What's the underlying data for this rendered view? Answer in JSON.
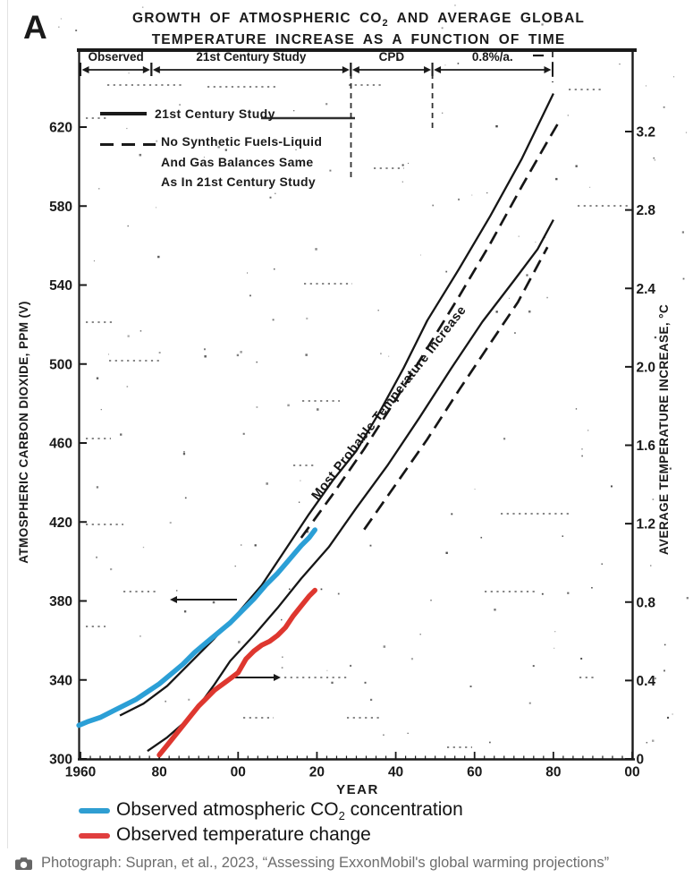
{
  "panel_label": "A",
  "title": {
    "line1_pre": "GROWTH OF ATMOSPHERIC CO",
    "line1_sub": "2",
    "line1_post": " AND AVERAGE GLOBAL",
    "line2": "TEMPERATURE INCREASE AS A FUNCTION OF TIME"
  },
  "phase_brackets": [
    {
      "label": "Observed",
      "start_year": 1960,
      "end_year": 1978
    },
    {
      "label": "21st Century Study",
      "start_year": 1978,
      "end_year": 2028.6
    },
    {
      "label": "CPD",
      "start_year": 2028.6,
      "end_year": 2049.3
    },
    {
      "label": "0.8%/a.",
      "start_year": 2049.3,
      "end_year": 2079.8
    }
  ],
  "inner_legend": {
    "solid_label": "21st Century Study",
    "dashed_label_lines": [
      "No Synthetic Fuels-Liquid",
      "And Gas Balances Same",
      "As In 21st Century Study"
    ]
  },
  "curve_annotation": "Most Probable Temperature Increase",
  "chart_data": {
    "type": "line",
    "x_axis": {
      "label": "YEAR",
      "range": [
        1960,
        2100
      ],
      "tick_years": [
        1960,
        1980,
        2000,
        2020,
        2040,
        2060,
        2080,
        2100
      ],
      "tick_labels": [
        "1960",
        "80",
        "00",
        "20",
        "40",
        "60",
        "80",
        "00"
      ]
    },
    "y_left": {
      "label": "ATMOSPHERIC CARBON DIOXIDE, PPM (V)",
      "range": [
        300,
        620
      ],
      "ticks": [
        300,
        340,
        380,
        420,
        460,
        500,
        540,
        580,
        620
      ]
    },
    "y_right": {
      "label": "AVERAGE TEMPERATURE INCREASE, °C",
      "range": [
        0,
        3.2
      ],
      "ticks": [
        0,
        0.4,
        0.8,
        1.2,
        1.6,
        2.0,
        2.4,
        2.8,
        3.2
      ]
    },
    "series": [
      {
        "id": "co2-projection-solid",
        "label": "21st Century Study",
        "axis": "left",
        "style": "solid",
        "color": "#161616",
        "points": [
          [
            1970,
            322
          ],
          [
            1976,
            328
          ],
          [
            1982,
            337
          ],
          [
            1988,
            349
          ],
          [
            1994,
            361
          ],
          [
            2000,
            374
          ],
          [
            2006,
            388
          ],
          [
            2012,
            406
          ],
          [
            2018,
            424
          ],
          [
            2024,
            441
          ],
          [
            2030,
            456
          ],
          [
            2036,
            476
          ],
          [
            2042,
            498
          ],
          [
            2048,
            522
          ],
          [
            2056,
            548
          ],
          [
            2064,
            575
          ],
          [
            2072,
            604
          ],
          [
            2080,
            637
          ]
        ]
      },
      {
        "id": "co2-projection-dashed",
        "label": "No Synthetic Fuels-Liquid And Gas Balances Same As In 21st Century Study",
        "axis": "left",
        "style": "dashed",
        "color": "#161616",
        "points": [
          [
            2016,
            412
          ],
          [
            2024,
            434
          ],
          [
            2032,
            457
          ],
          [
            2040,
            482
          ],
          [
            2048,
            508
          ],
          [
            2056,
            534
          ],
          [
            2064,
            561
          ],
          [
            2072,
            590
          ],
          [
            2078,
            611
          ],
          [
            2081.5,
            623
          ]
        ]
      },
      {
        "id": "temp-projection-solid",
        "label": "Most Probable Temperature Increase",
        "axis": "right",
        "style": "solid",
        "color": "#161616",
        "points": [
          [
            1977,
            0.04
          ],
          [
            1982,
            0.11
          ],
          [
            1986,
            0.18
          ],
          [
            1990,
            0.27
          ],
          [
            1994,
            0.38
          ],
          [
            1998,
            0.5
          ],
          [
            2004,
            0.63
          ],
          [
            2010,
            0.77
          ],
          [
            2016,
            0.92
          ],
          [
            2023,
            1.08
          ],
          [
            2030,
            1.28
          ],
          [
            2038,
            1.5
          ],
          [
            2046,
            1.74
          ],
          [
            2054,
            1.99
          ],
          [
            2062,
            2.23
          ],
          [
            2070,
            2.44
          ],
          [
            2076,
            2.6
          ],
          [
            2080,
            2.75
          ]
        ]
      },
      {
        "id": "temp-projection-dashed",
        "label": "Most Probable Temperature Increase (no synthetic fuels)",
        "axis": "right",
        "style": "dashed",
        "color": "#161616",
        "points": [
          [
            2032,
            1.17
          ],
          [
            2040,
            1.4
          ],
          [
            2048,
            1.63
          ],
          [
            2056,
            1.88
          ],
          [
            2064,
            2.12
          ],
          [
            2071,
            2.33
          ],
          [
            2078.5,
            2.61
          ]
        ]
      },
      {
        "id": "observed-co2",
        "label": "Observed atmospheric CO2 concentration",
        "axis": "left",
        "style": "thick",
        "color": "#2b9fd6",
        "points": [
          [
            1959.6,
            317
          ],
          [
            1962,
            319
          ],
          [
            1965,
            321
          ],
          [
            1968,
            324
          ],
          [
            1971,
            327
          ],
          [
            1974,
            330
          ],
          [
            1977,
            334
          ],
          [
            1980,
            338
          ],
          [
            1983,
            343
          ],
          [
            1986,
            348
          ],
          [
            1989,
            354
          ],
          [
            1992,
            359
          ],
          [
            1995,
            364
          ],
          [
            1998,
            369
          ],
          [
            2001,
            375
          ],
          [
            2004,
            381
          ],
          [
            2007,
            388
          ],
          [
            2010,
            394
          ],
          [
            2013,
            401
          ],
          [
            2016,
            408
          ],
          [
            2018,
            412
          ],
          [
            2019.5,
            416
          ]
        ]
      },
      {
        "id": "observed-temp",
        "label": "Observed temperature change",
        "axis": "right",
        "style": "thick",
        "color": "#de372f",
        "points": [
          [
            1980,
            0.02
          ],
          [
            1982,
            0.07
          ],
          [
            1984,
            0.12
          ],
          [
            1986,
            0.17
          ],
          [
            1988,
            0.22
          ],
          [
            1990,
            0.27
          ],
          [
            1992,
            0.31
          ],
          [
            1994,
            0.35
          ],
          [
            1996,
            0.38
          ],
          [
            1998,
            0.41
          ],
          [
            2000,
            0.44
          ],
          [
            2002,
            0.51
          ],
          [
            2004,
            0.55
          ],
          [
            2006,
            0.58
          ],
          [
            2008,
            0.6
          ],
          [
            2010,
            0.63
          ],
          [
            2012,
            0.67
          ],
          [
            2014,
            0.73
          ],
          [
            2016,
            0.78
          ],
          [
            2018,
            0.83
          ],
          [
            2019.5,
            0.86
          ]
        ]
      }
    ]
  },
  "bottom_legend": {
    "items": [
      {
        "color": "#2f9ed2",
        "text_pre": "Observed atmospheric CO",
        "text_sub": "2",
        "text_post": " concentration"
      },
      {
        "color": "#e03e3e",
        "text_pre": "Observed temperature change",
        "text_sub": "",
        "text_post": ""
      }
    ]
  },
  "caption": {
    "text": "Photograph: Supran, et al., 2023, “Assessing ExxonMobil's global warming projections”"
  }
}
